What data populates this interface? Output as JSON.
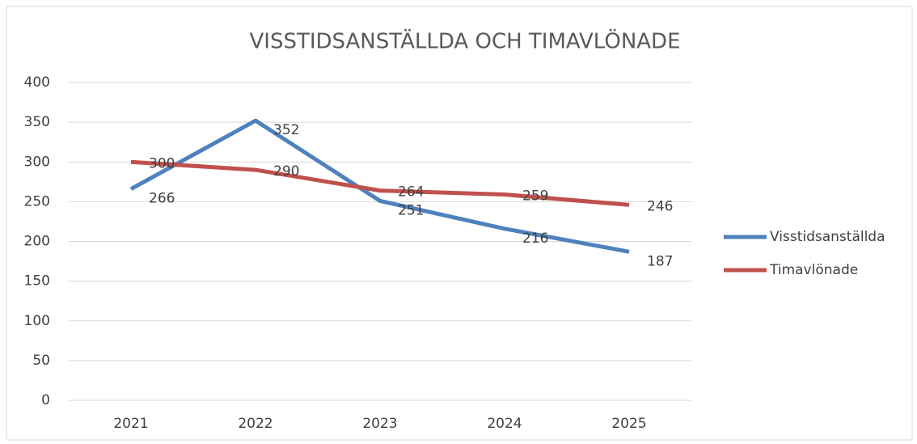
{
  "chart_data": {
    "type": "line",
    "title": "VISSTIDSANSTÄLLDA OCH TIMAVLÖNADE",
    "categories": [
      "2021",
      "2022",
      "2023",
      "2024",
      "2025"
    ],
    "series": [
      {
        "name": "Visstidsanställda",
        "color": "#4f81bd",
        "values": [
          266,
          352,
          251,
          216,
          187
        ]
      },
      {
        "name": "Timavlönade",
        "color": "#c0504d",
        "values": [
          300,
          290,
          264,
          259,
          246
        ]
      }
    ],
    "ylim": [
      0,
      400
    ],
    "yticks": [
      0,
      50,
      100,
      150,
      200,
      250,
      300,
      350,
      400
    ],
    "grid": true,
    "legend": "right"
  }
}
